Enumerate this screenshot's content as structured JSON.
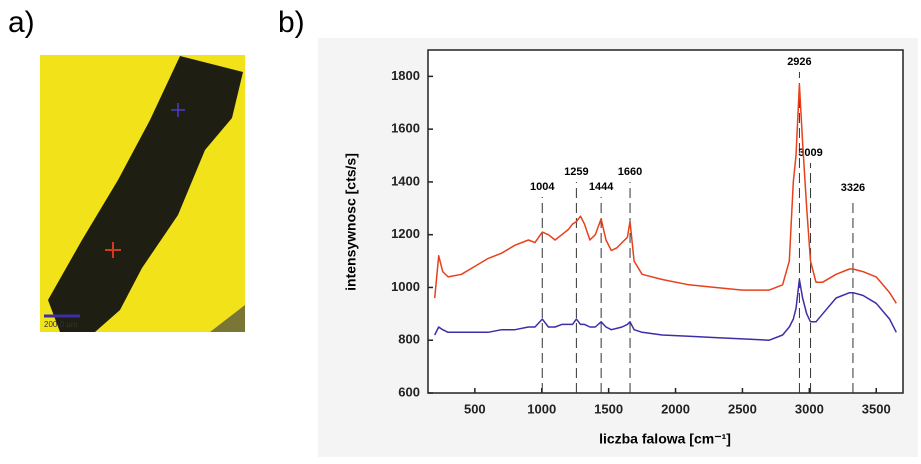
{
  "panel_labels": [
    "a)",
    "b)"
  ],
  "image": {
    "scale_bar_label": "200.0 µm"
  },
  "chart_data": {
    "type": "line",
    "ylabel": "intensywnosc [cts/s]",
    "xlabel": "liczba falowa [cm⁻¹]",
    "x": [
      200,
      230,
      260,
      300,
      400,
      500,
      600,
      700,
      800,
      900,
      950,
      1004,
      1050,
      1100,
      1150,
      1200,
      1230,
      1259,
      1290,
      1320,
      1360,
      1400,
      1444,
      1480,
      1520,
      1560,
      1600,
      1640,
      1660,
      1690,
      1750,
      1900,
      2100,
      2300,
      2500,
      2700,
      2800,
      2850,
      2880,
      2900,
      2926,
      2950,
      2980,
      3009,
      3050,
      3100,
      3200,
      3300,
      3326,
      3400,
      3500,
      3600,
      3650
    ],
    "series": [
      {
        "color": "#e8401c",
        "values": [
          960,
          1120,
          1060,
          1040,
          1050,
          1080,
          1110,
          1130,
          1160,
          1180,
          1170,
          1210,
          1200,
          1180,
          1200,
          1220,
          1240,
          1250,
          1270,
          1240,
          1180,
          1200,
          1260,
          1180,
          1140,
          1150,
          1170,
          1190,
          1250,
          1100,
          1050,
          1030,
          1010,
          1000,
          990,
          990,
          1010,
          1100,
          1400,
          1500,
          1770,
          1550,
          1300,
          1100,
          1020,
          1020,
          1050,
          1070,
          1070,
          1060,
          1040,
          980,
          940
        ]
      },
      {
        "color": "#3b2fa8",
        "values": [
          820,
          850,
          840,
          830,
          830,
          830,
          830,
          840,
          840,
          850,
          850,
          880,
          850,
          850,
          860,
          860,
          860,
          880,
          860,
          860,
          850,
          850,
          870,
          850,
          840,
          845,
          850,
          860,
          870,
          840,
          830,
          820,
          815,
          810,
          805,
          800,
          820,
          850,
          880,
          920,
          1030,
          960,
          900,
          870,
          870,
          900,
          960,
          980,
          980,
          970,
          940,
          880,
          830
        ]
      }
    ],
    "peak_markers": [
      1004,
      1259,
      1444,
      1660,
      2926,
      3009,
      3326
    ],
    "xlim": [
      150,
      3700
    ],
    "xticks": [
      500,
      1000,
      1500,
      2000,
      2500,
      3000,
      3500
    ],
    "ylim": [
      600,
      1900
    ],
    "yticks": [
      600,
      800,
      1000,
      1200,
      1400,
      1600,
      1800
    ]
  }
}
